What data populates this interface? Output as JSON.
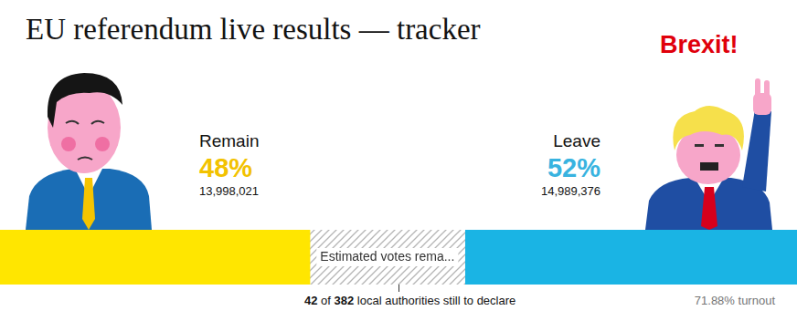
{
  "chart_data": {
    "type": "bar",
    "title": "EU referendum live results — tracker",
    "annotation": "Brexit!",
    "orientation": "horizontal",
    "stacked": true,
    "tick_labels": false,
    "grid": false,
    "categories": [
      null
    ],
    "xlim": [
      0,
      36000000
    ],
    "series": [
      {
        "name": "Remain",
        "color": "#ffe600",
        "values": [
          13998021
        ],
        "value_labels": [
          "13,998,021"
        ],
        "share": {
          "value": 48,
          "label": "48%"
        }
      },
      {
        "name": "Estimated votes rema...",
        "color": "#b5b5b5",
        "line_style": "hatched",
        "values": [
          7000000
        ]
      },
      {
        "name": "Leave",
        "color": "#1ab4e4",
        "values": [
          14989376
        ],
        "value_labels": [
          "14,989,376"
        ],
        "share": {
          "value": 52,
          "label": "52%"
        }
      }
    ],
    "authorities": {
      "still_to_declare": 42,
      "total": 382,
      "connector": "of",
      "caption": "local authorities still to declare"
    },
    "turnout": {
      "value": 71.88,
      "label": "71.88% turnout"
    }
  }
}
